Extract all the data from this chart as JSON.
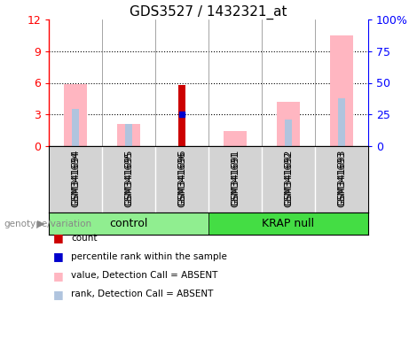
{
  "title": "GDS3527 / 1432321_at",
  "samples": [
    "GSM341694",
    "GSM341695",
    "GSM341696",
    "GSM341691",
    "GSM341692",
    "GSM341693"
  ],
  "ylim_left": [
    0,
    12
  ],
  "ylim_right": [
    0,
    100
  ],
  "yticks_left": [
    0,
    3,
    6,
    9,
    12
  ],
  "ytick_labels_left": [
    "0",
    "3",
    "6",
    "9",
    "12"
  ],
  "yticks_right": [
    0,
    25,
    50,
    75,
    100
  ],
  "ytick_labels_right": [
    "0",
    "25",
    "50",
    "75",
    "100%"
  ],
  "count_values": [
    0,
    0,
    5.8,
    0,
    0,
    0
  ],
  "percentile_values": [
    0,
    0,
    3.0,
    0,
    0,
    0
  ],
  "absent_value_heights": [
    5.9,
    2.1,
    0,
    1.4,
    4.2,
    10.5
  ],
  "absent_rank_heights": [
    3.5,
    2.1,
    0,
    0,
    2.5,
    4.5
  ],
  "count_color": "#cc0000",
  "percentile_color": "#0000cc",
  "absent_value_color": "#ffb6c1",
  "absent_rank_color": "#b0c4de",
  "cell_bg": "#d3d3d3",
  "group_ctrl_color": "#90ee90",
  "group_krap_color": "#44dd44",
  "legend_items": [
    [
      "#cc0000",
      "count"
    ],
    [
      "#0000cc",
      "percentile rank within the sample"
    ],
    [
      "#ffb6c1",
      "value, Detection Call = ABSENT"
    ],
    [
      "#b0c4de",
      "rank, Detection Call = ABSENT"
    ]
  ]
}
